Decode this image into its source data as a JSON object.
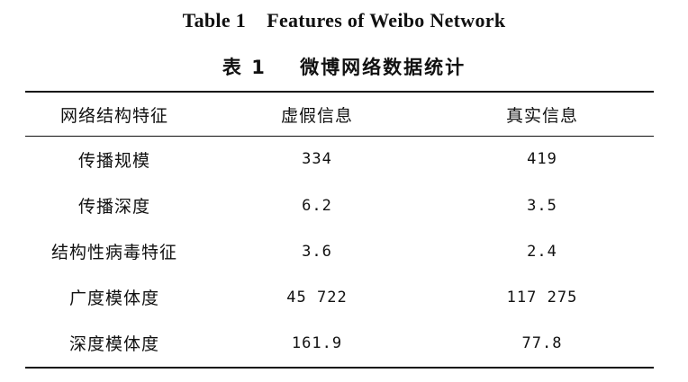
{
  "caption": {
    "english": "Table 1    Features of Weibo Network",
    "chinese": "表 1    微博网络数据统计"
  },
  "table": {
    "headers": [
      "网络结构特征",
      "虚假信息",
      "真实信息"
    ],
    "rows": [
      {
        "feature": "传播规模",
        "fake": "334",
        "real": "419"
      },
      {
        "feature": "传播深度",
        "fake": "6.2",
        "real": "3.5"
      },
      {
        "feature": "结构性病毒特征",
        "fake": "3.6",
        "real": "2.4"
      },
      {
        "feature": "广度模体度",
        "fake": "45 722",
        "real": "117 275"
      },
      {
        "feature": "深度模体度",
        "fake": "161.9",
        "real": "77.8"
      }
    ]
  }
}
